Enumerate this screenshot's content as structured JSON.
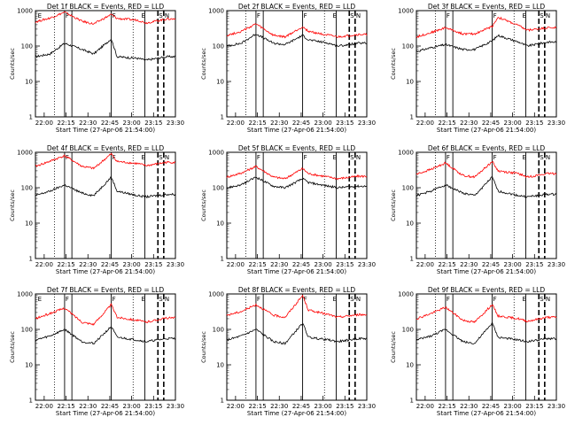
{
  "chart_data": [
    {
      "type": "line",
      "title": "Det 1f BLACK = Events, RED = LLD",
      "ylabel": "Counts/sec",
      "xlabel": "Start Time (27-Apr-06 21:54:00)",
      "x_ticks": [
        "22:00",
        "22:15",
        "22:30",
        "22:45",
        "23:00",
        "23:15",
        "23:30"
      ],
      "y_ticks": [
        "1",
        "10",
        "100",
        "1000"
      ],
      "ylim": [
        1,
        1000
      ],
      "yscale": "log",
      "markers": [
        "E",
        "F",
        "F",
        "E",
        "S",
        "N"
      ],
      "series": [
        {
          "color": "#000000",
          "x_min": [
            0,
            10,
            20,
            32,
            40,
            52,
            56,
            70,
            76,
            90
          ],
          "values": [
            50,
            60,
            120,
            80,
            60,
            160,
            50,
            45,
            40,
            50
          ]
        },
        {
          "color": "#ff0000",
          "x_min": [
            0,
            10,
            20,
            32,
            40,
            52,
            56,
            70,
            76,
            90
          ],
          "values": [
            480,
            620,
            900,
            500,
            420,
            780,
            600,
            540,
            450,
            580
          ]
        }
      ]
    },
    {
      "type": "line",
      "title": "Det 2f BLACK = Events, RED = LLD",
      "ylabel": "Counts/sec",
      "xlabel": "Start Time (27-Apr-06 21:54:00)",
      "x_ticks": [
        "22:00",
        "22:15",
        "22:30",
        "22:45",
        "23:00",
        "23:15",
        "23:30"
      ],
      "y_ticks": [
        "1",
        "10",
        "100",
        "1000"
      ],
      "ylim": [
        1,
        1000
      ],
      "yscale": "log",
      "markers": [
        "F",
        "F",
        "E",
        "S",
        "N"
      ],
      "series": [
        {
          "color": "#000000",
          "x_min": [
            0,
            10,
            20,
            32,
            40,
            52,
            56,
            70,
            76,
            90
          ],
          "values": [
            100,
            120,
            220,
            120,
            110,
            200,
            150,
            120,
            100,
            120
          ]
        },
        {
          "color": "#ff0000",
          "x_min": [
            0,
            10,
            20,
            32,
            40,
            52,
            56,
            70,
            76,
            90
          ],
          "values": [
            200,
            260,
            420,
            200,
            180,
            350,
            260,
            200,
            180,
            210
          ]
        }
      ]
    },
    {
      "type": "line",
      "title": "Det 3f BLACK = Events, RED = LLD",
      "ylabel": "Counts/sec",
      "xlabel": "Start Time (27-Apr-06 21:54:00)",
      "x_ticks": [
        "22:00",
        "22:15",
        "22:30",
        "22:45",
        "23:00",
        "23:15",
        "23:30"
      ],
      "y_ticks": [
        "1",
        "10",
        "100",
        "1000"
      ],
      "ylim": [
        1,
        1000
      ],
      "yscale": "log",
      "markers": [
        "F",
        "F",
        "E",
        "S",
        "N"
      ],
      "series": [
        {
          "color": "#000000",
          "x_min": [
            0,
            10,
            20,
            32,
            40,
            52,
            56,
            70,
            76,
            90
          ],
          "values": [
            70,
            90,
            110,
            80,
            80,
            140,
            200,
            130,
            100,
            130
          ]
        },
        {
          "color": "#ff0000",
          "x_min": [
            0,
            10,
            20,
            32,
            40,
            52,
            56,
            70,
            76,
            90
          ],
          "values": [
            180,
            240,
            330,
            220,
            220,
            360,
            650,
            380,
            280,
            330
          ]
        }
      ]
    },
    {
      "type": "line",
      "title": "Det 4f BLACK = Events, RED = LLD",
      "ylabel": "Counts/sec",
      "xlabel": "Start Time (27-Apr-06 21:54:00)",
      "x_ticks": [
        "22:00",
        "22:15",
        "22:30",
        "22:45",
        "23:00",
        "23:15",
        "23:30"
      ],
      "y_ticks": [
        "1",
        "10",
        "100",
        "1000"
      ],
      "ylim": [
        1,
        1000
      ],
      "yscale": "log",
      "markers": [
        "F",
        "F",
        "E",
        "S",
        "N"
      ],
      "series": [
        {
          "color": "#000000",
          "x_min": [
            0,
            10,
            20,
            32,
            40,
            52,
            56,
            70,
            76,
            90
          ],
          "values": [
            60,
            80,
            120,
            70,
            60,
            200,
            80,
            60,
            55,
            65
          ]
        },
        {
          "color": "#ff0000",
          "x_min": [
            0,
            10,
            20,
            32,
            40,
            52,
            56,
            70,
            76,
            90
          ],
          "values": [
            400,
            560,
            800,
            400,
            350,
            900,
            550,
            480,
            420,
            520
          ]
        }
      ]
    },
    {
      "type": "line",
      "title": "Det 5f BLACK = Events, RED = LLD",
      "ylabel": "Counts/sec",
      "xlabel": "Start Time (27-Apr-06 21:54:00)",
      "x_ticks": [
        "22:00",
        "22:15",
        "22:30",
        "22:45",
        "23:00",
        "23:15",
        "23:30"
      ],
      "y_ticks": [
        "1",
        "10",
        "100",
        "1000"
      ],
      "ylim": [
        1,
        1000
      ],
      "yscale": "log",
      "markers": [
        "F",
        "F",
        "E",
        "S",
        "N"
      ],
      "series": [
        {
          "color": "#000000",
          "x_min": [
            0,
            10,
            20,
            32,
            40,
            52,
            56,
            70,
            76,
            90
          ],
          "values": [
            100,
            120,
            200,
            110,
            100,
            180,
            140,
            110,
            100,
            110
          ]
        },
        {
          "color": "#ff0000",
          "x_min": [
            0,
            10,
            20,
            32,
            40,
            52,
            56,
            70,
            76,
            90
          ],
          "values": [
            200,
            260,
            400,
            200,
            180,
            350,
            250,
            200,
            180,
            210
          ]
        }
      ]
    },
    {
      "type": "line",
      "title": "Det 6f BLACK = Events, RED = LLD",
      "ylabel": "Counts/sec",
      "xlabel": "Start Time (27-Apr-06 21:54:00)",
      "x_ticks": [
        "22:00",
        "22:15",
        "22:30",
        "22:45",
        "23:00",
        "23:15",
        "23:30"
      ],
      "y_ticks": [
        "1",
        "10",
        "100",
        "1000"
      ],
      "ylim": [
        1,
        1000
      ],
      "yscale": "log",
      "markers": [
        "F",
        "F",
        "E",
        "S",
        "N"
      ],
      "series": [
        {
          "color": "#000000",
          "x_min": [
            0,
            10,
            20,
            32,
            40,
            52,
            56,
            70,
            76,
            90
          ],
          "values": [
            60,
            80,
            120,
            70,
            60,
            200,
            80,
            60,
            55,
            65
          ]
        },
        {
          "color": "#ff0000",
          "x_min": [
            0,
            10,
            20,
            32,
            40,
            52,
            56,
            70,
            76,
            90
          ],
          "values": [
            240,
            330,
            500,
            220,
            200,
            550,
            300,
            250,
            200,
            250
          ]
        }
      ]
    },
    {
      "type": "line",
      "title": "Det 7f BLACK = Events, RED = LLD",
      "ylabel": "Counts/sec",
      "xlabel": "Start Time (27-Apr-06 21:54:00)",
      "x_ticks": [
        "22:00",
        "22:15",
        "22:30",
        "22:45",
        "23:00",
        "23:15",
        "23:30"
      ],
      "y_ticks": [
        "1",
        "10",
        "100",
        "1000"
      ],
      "ylim": [
        1,
        1000
      ],
      "yscale": "log",
      "markers": [
        "E",
        "F",
        "F",
        "E",
        "S",
        "N"
      ],
      "series": [
        {
          "color": "#000000",
          "x_min": [
            0,
            10,
            20,
            32,
            40,
            52,
            56,
            70,
            76,
            90
          ],
          "values": [
            50,
            65,
            100,
            45,
            40,
            120,
            60,
            50,
            45,
            55
          ]
        },
        {
          "color": "#ff0000",
          "x_min": [
            0,
            10,
            20,
            32,
            40,
            52,
            56,
            70,
            76,
            90
          ],
          "values": [
            200,
            280,
            400,
            160,
            140,
            500,
            220,
            180,
            160,
            210
          ]
        }
      ]
    },
    {
      "type": "line",
      "title": "Det 8f BLACK = Events, RED = LLD",
      "ylabel": "Counts/sec",
      "xlabel": "Start Time (27-Apr-06 21:54:00)",
      "x_ticks": [
        "22:00",
        "22:15",
        "22:30",
        "22:45",
        "23:00",
        "23:15",
        "23:30"
      ],
      "y_ticks": [
        "1",
        "10",
        "100",
        "1000"
      ],
      "ylim": [
        1,
        1000
      ],
      "yscale": "log",
      "markers": [
        "F",
        "F",
        "E",
        "S",
        "N"
      ],
      "series": [
        {
          "color": "#000000",
          "x_min": [
            0,
            10,
            20,
            32,
            40,
            52,
            56,
            70,
            76,
            90
          ],
          "values": [
            50,
            65,
            100,
            45,
            40,
            150,
            60,
            50,
            45,
            55
          ]
        },
        {
          "color": "#ff0000",
          "x_min": [
            0,
            10,
            20,
            32,
            40,
            52,
            56,
            70,
            76,
            90
          ],
          "values": [
            250,
            320,
            500,
            250,
            220,
            900,
            350,
            260,
            220,
            260
          ]
        }
      ]
    },
    {
      "type": "line",
      "title": "Det 9f BLACK = Events, RED = LLD",
      "ylabel": "Counts/sec",
      "xlabel": "Start Time (27-Apr-06 21:54:00)",
      "x_ticks": [
        "22:00",
        "22:15",
        "22:30",
        "22:45",
        "23:00",
        "23:15",
        "23:30"
      ],
      "y_ticks": [
        "1",
        "10",
        "100",
        "1000"
      ],
      "ylim": [
        1,
        1000
      ],
      "yscale": "log",
      "markers": [
        "F",
        "F",
        "E",
        "S",
        "N"
      ],
      "series": [
        {
          "color": "#000000",
          "x_min": [
            0,
            10,
            20,
            32,
            40,
            52,
            56,
            70,
            76,
            90
          ],
          "values": [
            50,
            65,
            100,
            45,
            40,
            150,
            60,
            50,
            45,
            55
          ]
        },
        {
          "color": "#ff0000",
          "x_min": [
            0,
            10,
            20,
            32,
            40,
            52,
            56,
            70,
            76,
            90
          ],
          "values": [
            200,
            280,
            420,
            180,
            160,
            500,
            240,
            200,
            170,
            220
          ]
        }
      ]
    }
  ]
}
